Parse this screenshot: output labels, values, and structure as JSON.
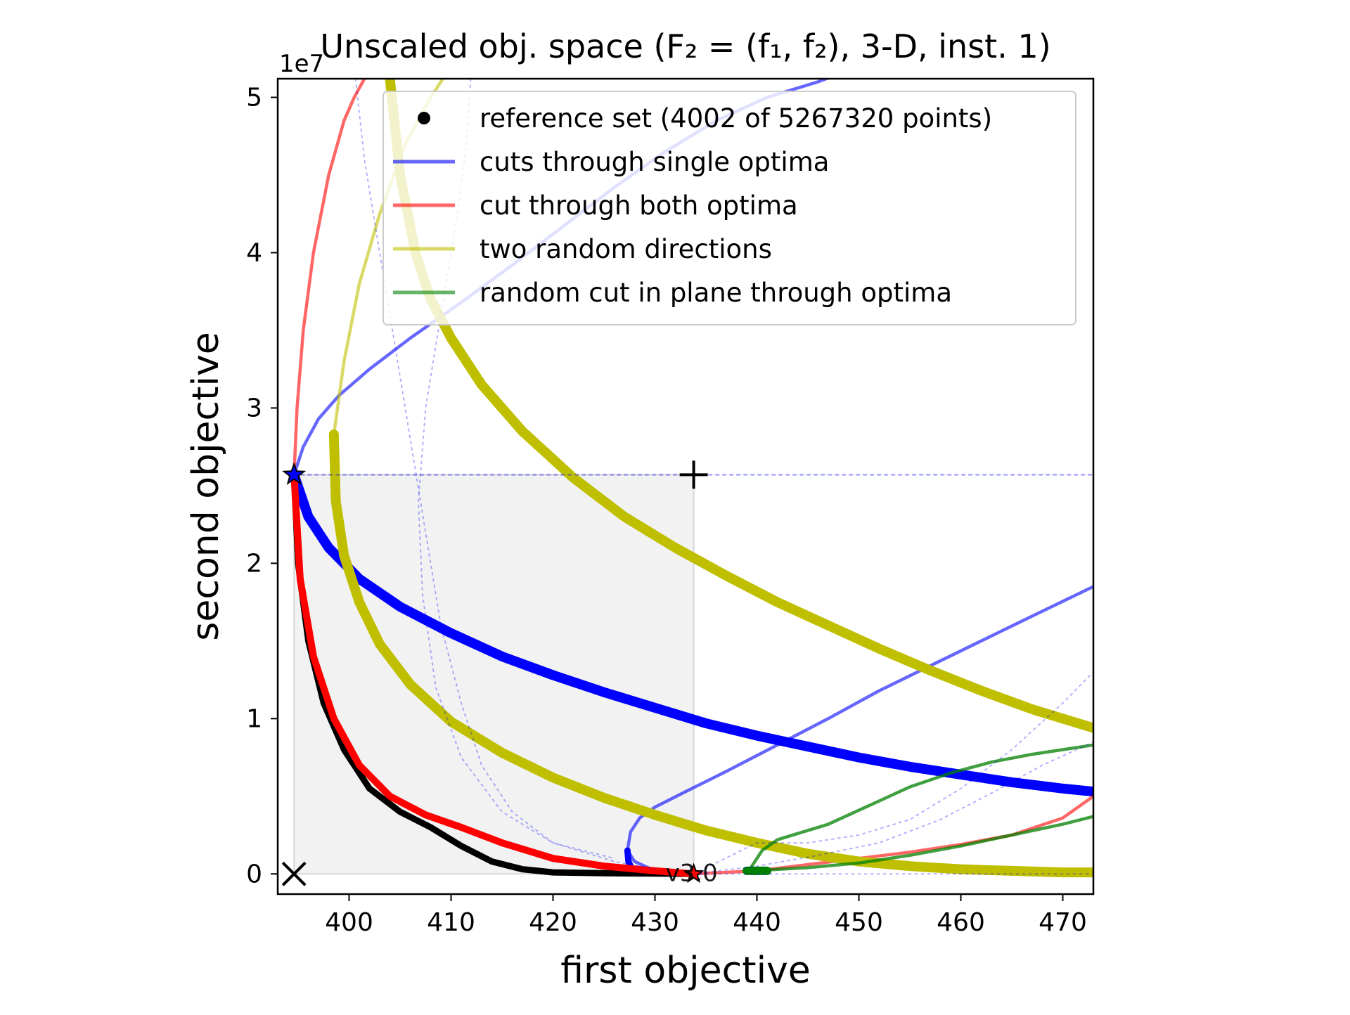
{
  "chart_data": {
    "type": "line",
    "title": "Unscaled obj. space (F₂ = (f₁, f₂), 3-D, inst. 1)",
    "xlabel": "first objective",
    "ylabel": "second objective",
    "y_offset_label": "1e7",
    "xlim": [
      393.0,
      473.0
    ],
    "ylim": [
      -0.13,
      5.12
    ],
    "y_unit_multiplier": 10000000,
    "xticks": [
      400,
      410,
      420,
      430,
      440,
      450,
      460,
      470
    ],
    "xtick_labels": [
      "400",
      "410",
      "420",
      "430",
      "440",
      "450",
      "460",
      "470"
    ],
    "yticks": [
      0,
      1,
      2,
      3,
      4,
      5
    ],
    "ytick_labels": [
      "0",
      "1",
      "2",
      "3",
      "4",
      "5"
    ],
    "grid": false,
    "legend_position": "top-right",
    "legend": [
      {
        "label": "reference set (4002 of 5267320 points)",
        "marker": "dot",
        "color": "#000000"
      },
      {
        "label": "cuts through single optima",
        "marker": "line",
        "color": "#0000ff"
      },
      {
        "label": "cut through both optima",
        "marker": "line",
        "color": "#ff0000"
      },
      {
        "label": "two random directions",
        "marker": "line",
        "color": "#bfbf00"
      },
      {
        "label": "random cut in plane through optima",
        "marker": "line",
        "color": "#008000"
      }
    ],
    "annotations": [
      {
        "text": "v3.0",
        "x": 433.6,
        "y": 0.0
      }
    ],
    "markers": {
      "optimum1": {
        "x": 394.6,
        "y": 2.57,
        "color": "#0000ff"
      },
      "optimum2": {
        "x": 433.8,
        "y": 0.0,
        "color": "#ff0000"
      },
      "nadir_plus": {
        "x": 433.8,
        "y": 2.57
      },
      "ideal_x": {
        "x": 394.6,
        "y": 0.0
      }
    },
    "dominated_region": {
      "x": [
        394.6,
        433.8
      ],
      "y": [
        0.0,
        2.57
      ]
    },
    "series": [
      {
        "group": "reference set",
        "color": "#000000",
        "width": 9,
        "opacity": 1,
        "x": [
          394.6,
          395.0,
          396.0,
          397.5,
          399.5,
          402.0,
          405.0,
          408.0,
          411.0,
          414.0,
          417.0,
          420.0,
          425.0,
          430.0,
          433.8
        ],
        "y": [
          2.57,
          2.0,
          1.5,
          1.1,
          0.8,
          0.55,
          0.4,
          0.3,
          0.18,
          0.08,
          0.03,
          0.01,
          0.005,
          0.002,
          0.0
        ]
      },
      {
        "group": "cuts through single optima",
        "color": "#0000ff",
        "width": 14,
        "opacity": 1,
        "x": [
          394.6,
          396.0,
          398.0,
          401.0,
          405.0,
          410.0,
          415.0,
          420.0,
          425.0,
          430.0,
          435.0,
          440.0,
          445.0,
          450.0,
          455.0,
          460.0,
          465.0,
          470.0,
          473.0
        ],
        "y": [
          2.57,
          2.3,
          2.1,
          1.9,
          1.72,
          1.55,
          1.4,
          1.28,
          1.17,
          1.07,
          0.97,
          0.89,
          0.82,
          0.75,
          0.69,
          0.64,
          0.59,
          0.55,
          0.53
        ]
      },
      {
        "group": "cuts through single optima",
        "color": "#0000ff",
        "width": 4.5,
        "opacity": 0.6,
        "x": [
          394.6,
          395.5,
          397.0,
          399.0,
          402.0,
          406.0,
          411.0,
          416.0,
          421.0,
          426.0,
          431.0,
          436.0,
          441.0,
          446.0,
          450.0
        ],
        "y": [
          2.57,
          2.75,
          2.93,
          3.08,
          3.25,
          3.45,
          3.68,
          3.92,
          4.17,
          4.42,
          4.65,
          4.85,
          5.0,
          5.1,
          5.2
        ]
      },
      {
        "group": "cuts through single optima",
        "color": "#0000ff",
        "width": 4.5,
        "opacity": 0.6,
        "x": [
          433.8,
          430.0,
          428.0,
          427.3,
          427.6,
          428.5,
          430.0,
          433.0,
          437.0,
          442.0,
          447.0,
          452.0,
          457.0,
          462.0,
          467.0,
          473.0
        ],
        "y": [
          0.0,
          0.02,
          0.08,
          0.15,
          0.27,
          0.36,
          0.43,
          0.53,
          0.66,
          0.83,
          1.0,
          1.18,
          1.34,
          1.5,
          1.66,
          1.85
        ]
      },
      {
        "group": "cuts through single optima",
        "color": "#0000ff",
        "width": 9,
        "opacity": 1,
        "x": [
          427.3,
          427.4,
          427.6
        ],
        "y": [
          0.15,
          0.08,
          0.05
        ]
      },
      {
        "group": "cut through both optima",
        "color": "#ff0000",
        "width": 10,
        "opacity": 1,
        "x": [
          394.6,
          395.2,
          396.5,
          398.5,
          401.0,
          404.0,
          407.5,
          411.0,
          415.0,
          420.0,
          425.0,
          430.0,
          433.8
        ],
        "y": [
          2.57,
          1.9,
          1.4,
          1.0,
          0.7,
          0.5,
          0.38,
          0.3,
          0.2,
          0.1,
          0.05,
          0.02,
          0.0
        ]
      },
      {
        "group": "cut through both optima",
        "color": "#ff0000",
        "width": 4.5,
        "opacity": 0.6,
        "x": [
          394.6,
          394.9,
          395.5,
          396.5,
          398.0,
          399.5,
          400.5,
          401.5,
          402.5
        ],
        "y": [
          2.57,
          3.0,
          3.5,
          4.0,
          4.5,
          4.85,
          5.0,
          5.12,
          5.2
        ]
      },
      {
        "group": "cut through both optima",
        "color": "#ff0000",
        "width": 4.5,
        "opacity": 0.6,
        "x": [
          433.8,
          440.0,
          445.0,
          450.0,
          455.0,
          460.0,
          465.0,
          470.0,
          473.0
        ],
        "y": [
          0.0,
          0.02,
          0.06,
          0.1,
          0.14,
          0.19,
          0.25,
          0.36,
          0.5
        ]
      },
      {
        "group": "two random directions",
        "color": "#bfbf00",
        "width": 14,
        "opacity": 1,
        "x": [
          398.5,
          398.7,
          399.5,
          401.0,
          403.0,
          406.0,
          410.0,
          415.0,
          420.0,
          425.0,
          430.0,
          435.0,
          440.0,
          445.0,
          450.0,
          455.0,
          460.0,
          465.0,
          470.0,
          473.0
        ],
        "y": [
          2.83,
          2.4,
          2.05,
          1.75,
          1.48,
          1.22,
          0.98,
          0.78,
          0.62,
          0.49,
          0.38,
          0.28,
          0.2,
          0.13,
          0.08,
          0.05,
          0.03,
          0.02,
          0.01,
          0.01
        ]
      },
      {
        "group": "two random directions",
        "color": "#bfbf00",
        "width": 14,
        "opacity": 1,
        "x": [
          404.0,
          405.0,
          406.5,
          408.0,
          410.0,
          413.0,
          417.0,
          422.0,
          427.0,
          432.0,
          437.0,
          442.0,
          447.0,
          452.0,
          457.0,
          462.0,
          467.0,
          473.0
        ],
        "y": [
          5.12,
          4.5,
          4.0,
          3.7,
          3.45,
          3.15,
          2.85,
          2.55,
          2.3,
          2.1,
          1.92,
          1.75,
          1.6,
          1.45,
          1.31,
          1.18,
          1.06,
          0.94
        ]
      },
      {
        "group": "two random directions",
        "color": "#bfbf00",
        "width": 4.5,
        "opacity": 0.6,
        "x": [
          398.5,
          399.5,
          401.0,
          403.0,
          405.5,
          408.0,
          410.0
        ],
        "y": [
          2.83,
          3.3,
          3.8,
          4.25,
          4.7,
          5.0,
          5.2
        ]
      },
      {
        "group": "random cut in plane through optima",
        "color": "#008000",
        "width": 4.5,
        "opacity": 0.75,
        "x": [
          439.5,
          440.5,
          442.0,
          444.0,
          447.0,
          451.0,
          455.0,
          459.0,
          463.0,
          467.0,
          473.0
        ],
        "y": [
          0.05,
          0.15,
          0.22,
          0.26,
          0.32,
          0.44,
          0.56,
          0.65,
          0.72,
          0.77,
          0.83
        ]
      },
      {
        "group": "random cut in plane through optima",
        "color": "#008000",
        "width": 4.5,
        "opacity": 0.75,
        "x": [
          439.5,
          445.0,
          450.0,
          455.0,
          460.0,
          465.0,
          470.0,
          473.0
        ],
        "y": [
          0.02,
          0.04,
          0.07,
          0.12,
          0.18,
          0.25,
          0.32,
          0.37
        ]
      },
      {
        "group": "random cut in plane through optima",
        "color": "#008000",
        "width": 12,
        "opacity": 1,
        "x": [
          439.0,
          440.0,
          441.0
        ],
        "y": [
          0.02,
          0.02,
          0.02
        ]
      },
      {
        "group": "single-optimum dotted cut",
        "color": "#0000ff",
        "width": 2.5,
        "opacity": 0.35,
        "dash": "4 6",
        "x": [
          394.6,
          473.0
        ],
        "y": [
          2.57,
          2.57
        ]
      },
      {
        "group": "single-optimum dotted cut",
        "color": "#0000ff",
        "width": 2,
        "opacity": 0.3,
        "dash": "3 6",
        "x": [
          400.5,
          401.5,
          403.0,
          404.5,
          406.0,
          407.5,
          409.0,
          411.0,
          413.0,
          416.0,
          420.0,
          426.0,
          430.0
        ],
        "y": [
          5.2,
          4.6,
          4.0,
          3.4,
          2.8,
          2.2,
          1.6,
          1.1,
          0.7,
          0.4,
          0.2,
          0.08,
          0.03
        ]
      },
      {
        "group": "single-optimum dotted cut",
        "color": "#0000ff",
        "width": 2,
        "opacity": 0.3,
        "dash": "3 6",
        "x": [
          412.0,
          411.5,
          410.5,
          409.0,
          407.5,
          406.8,
          407.2,
          408.5,
          411.0,
          415.0,
          420.0,
          426.0
        ],
        "y": [
          5.2,
          4.7,
          4.2,
          3.6,
          3.0,
          2.4,
          1.8,
          1.2,
          0.75,
          0.4,
          0.2,
          0.1
        ]
      },
      {
        "group": "single-optimum dotted cut",
        "color": "#0000ff",
        "width": 2,
        "opacity": 0.3,
        "dash": "3 6",
        "x": [
          433.8,
          440.0,
          445.0,
          450.0,
          455.0,
          460.0,
          465.0,
          470.0,
          473.0
        ],
        "y": [
          0.0,
          0.2,
          0.2,
          0.25,
          0.35,
          0.55,
          0.8,
          1.1,
          1.3
        ]
      },
      {
        "group": "single-optimum dotted cut",
        "color": "#0000ff",
        "width": 2,
        "opacity": 0.3,
        "dash": "3 6",
        "x": [
          433.8,
          440.0,
          446.0,
          452.0,
          458.0,
          463.0,
          468.0,
          473.0
        ],
        "y": [
          0.0,
          0.05,
          0.12,
          0.2,
          0.35,
          0.52,
          0.7,
          0.85
        ]
      },
      {
        "group": "single-optimum dotted cut",
        "color": "#0000ff",
        "width": 2,
        "opacity": 0.3,
        "dash": "3 6",
        "x": [
          433.8,
          473.0
        ],
        "y": [
          0.0,
          0.0
        ]
      }
    ]
  }
}
